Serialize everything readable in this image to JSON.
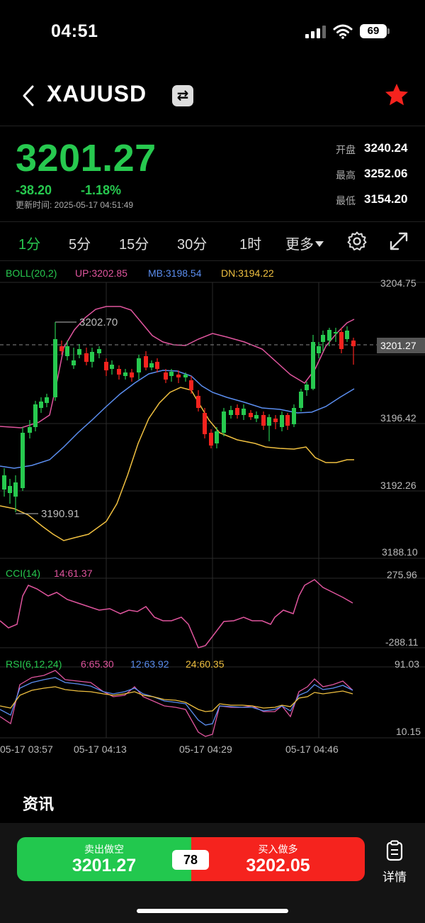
{
  "status": {
    "time": "04:51",
    "battery": "69"
  },
  "nav": {
    "title": "XAUUSD",
    "swap_glyph": "⇄"
  },
  "quote": {
    "price": "3201.27",
    "change": "-38.20",
    "change_pct": "-1.18%",
    "update_time": "更新时间: 2025-05-17 04:51:49",
    "stats": [
      {
        "label": "开盘",
        "value": "3240.24"
      },
      {
        "label": "最高",
        "value": "3252.06"
      },
      {
        "label": "最低",
        "value": "3154.20"
      }
    ]
  },
  "tabs": [
    "1分",
    "5分",
    "15分",
    "30分",
    "1时",
    "更多"
  ],
  "active_tab": "1分",
  "colors": {
    "up": "#27c94f",
    "down": "#f5231e",
    "boll_up": "#e0559e",
    "boll_mb": "#5b8ef0",
    "boll_dn": "#f0c040",
    "cci": "#e0559e"
  },
  "chart": {
    "boll": {
      "title": "BOLL(20,2)",
      "up": "UP:3202.85",
      "mb": "MB:3198.54",
      "dn": "DN:3194.22"
    },
    "cci": {
      "title": "CCI(14)",
      "value": "14:61.37"
    },
    "rsi": {
      "title": "RSI(6,12,24)",
      "v6": "6:65.30",
      "v12": "12:63.92",
      "v24": "24:60.35"
    },
    "main_axis": [
      "3204.75",
      "3196.42",
      "3192.26",
      "3188.10"
    ],
    "current_price": "3201.27",
    "max_label": "3202.70",
    "min_label": "3190.91",
    "cci_axis": [
      "275.96",
      "-288.11"
    ],
    "rsi_axis": [
      "91.03",
      "10.15"
    ],
    "time_axis": [
      "05-17 03:57",
      "05-17 04:13",
      "05-17 04:29",
      "05-17 04:46"
    ]
  },
  "news_title": "资讯",
  "trade": {
    "sell_label": "卖出做空",
    "sell_price": "3201.27",
    "buy_label": "买入做多",
    "buy_price": "3202.05",
    "spread": "78",
    "detail_label": "详情"
  }
}
